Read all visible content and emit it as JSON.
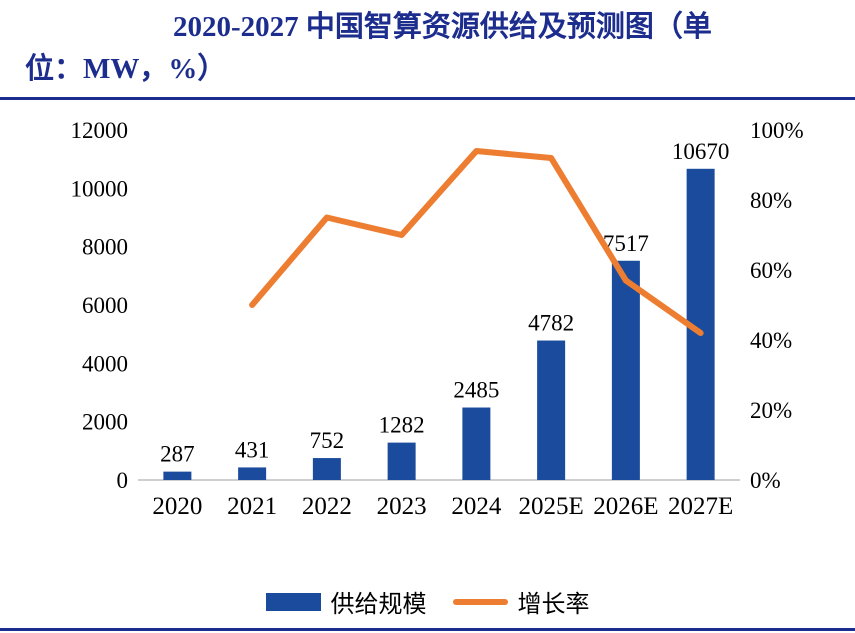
{
  "header": {
    "title_line1": "2020-2027 中国智算资源供给及预测图（单",
    "title_line2": "位：MW，%）",
    "title_full": "2020-2027 中国智算资源供给及预测图（单位：MW，%）"
  },
  "chart_data": {
    "type": "combo",
    "title": "2020-2027 中国智算资源供给及预测图（单位：MW，%）",
    "categories": [
      "2020",
      "2021",
      "2022",
      "2023",
      "2024",
      "2025E",
      "2026E",
      "2027E"
    ],
    "series": [
      {
        "name": "供给规模",
        "type": "bar",
        "axis": "left",
        "values": [
          287,
          431,
          752,
          1282,
          2485,
          4782,
          7517,
          10670
        ]
      },
      {
        "name": "增长率",
        "type": "line",
        "axis": "right",
        "values": [
          null,
          50,
          75,
          70,
          94,
          92,
          57,
          42
        ]
      }
    ],
    "left_axis": {
      "min": 0,
      "max": 12000,
      "ticks": [
        0,
        2000,
        4000,
        6000,
        8000,
        10000,
        12000
      ]
    },
    "right_axis": {
      "min": 0,
      "max": 100,
      "ticks": [
        "0%",
        "20%",
        "40%",
        "60%",
        "80%",
        "100%"
      ]
    },
    "legend": [
      "供给规模",
      "增长率"
    ],
    "legend_position": "bottom",
    "grid": false,
    "colors": {
      "bar": "#1a4b9c",
      "line": "#ed7d31",
      "title": "#1c2d8e",
      "axis_line": "#bfbfbf",
      "label_text": "#000000"
    }
  }
}
